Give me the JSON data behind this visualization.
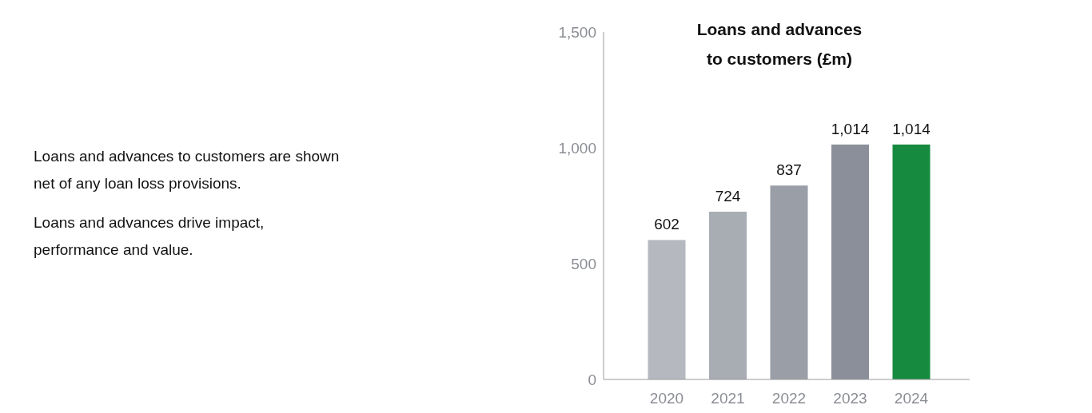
{
  "chart_data": {
    "type": "bar",
    "title": "Loans and advances to customers (£m)",
    "categories": [
      "2020",
      "2021",
      "2022",
      "2023",
      "2024"
    ],
    "values": [
      602,
      724,
      837,
      1014,
      1014
    ],
    "colors": [
      "#b5b9bf",
      "#a8acb3",
      "#9a9ea7",
      "#8b8f99",
      "#168a3e"
    ],
    "ylim": [
      0,
      1500
    ],
    "yticks": [
      0,
      {
        "value": 500,
        "label": "500"
      },
      {
        "value": 1000,
        "label": "1,000"
      },
      {
        "value": 1500,
        "label": "1,500"
      }
    ],
    "value_labels": [
      "602",
      "724",
      "837",
      "1,014",
      "1,014"
    ],
    "annotations": [
      "Loans and advances to customers are shown net of any loan loss provisions.",
      "Loans and advances drive impact, performance and value."
    ]
  }
}
